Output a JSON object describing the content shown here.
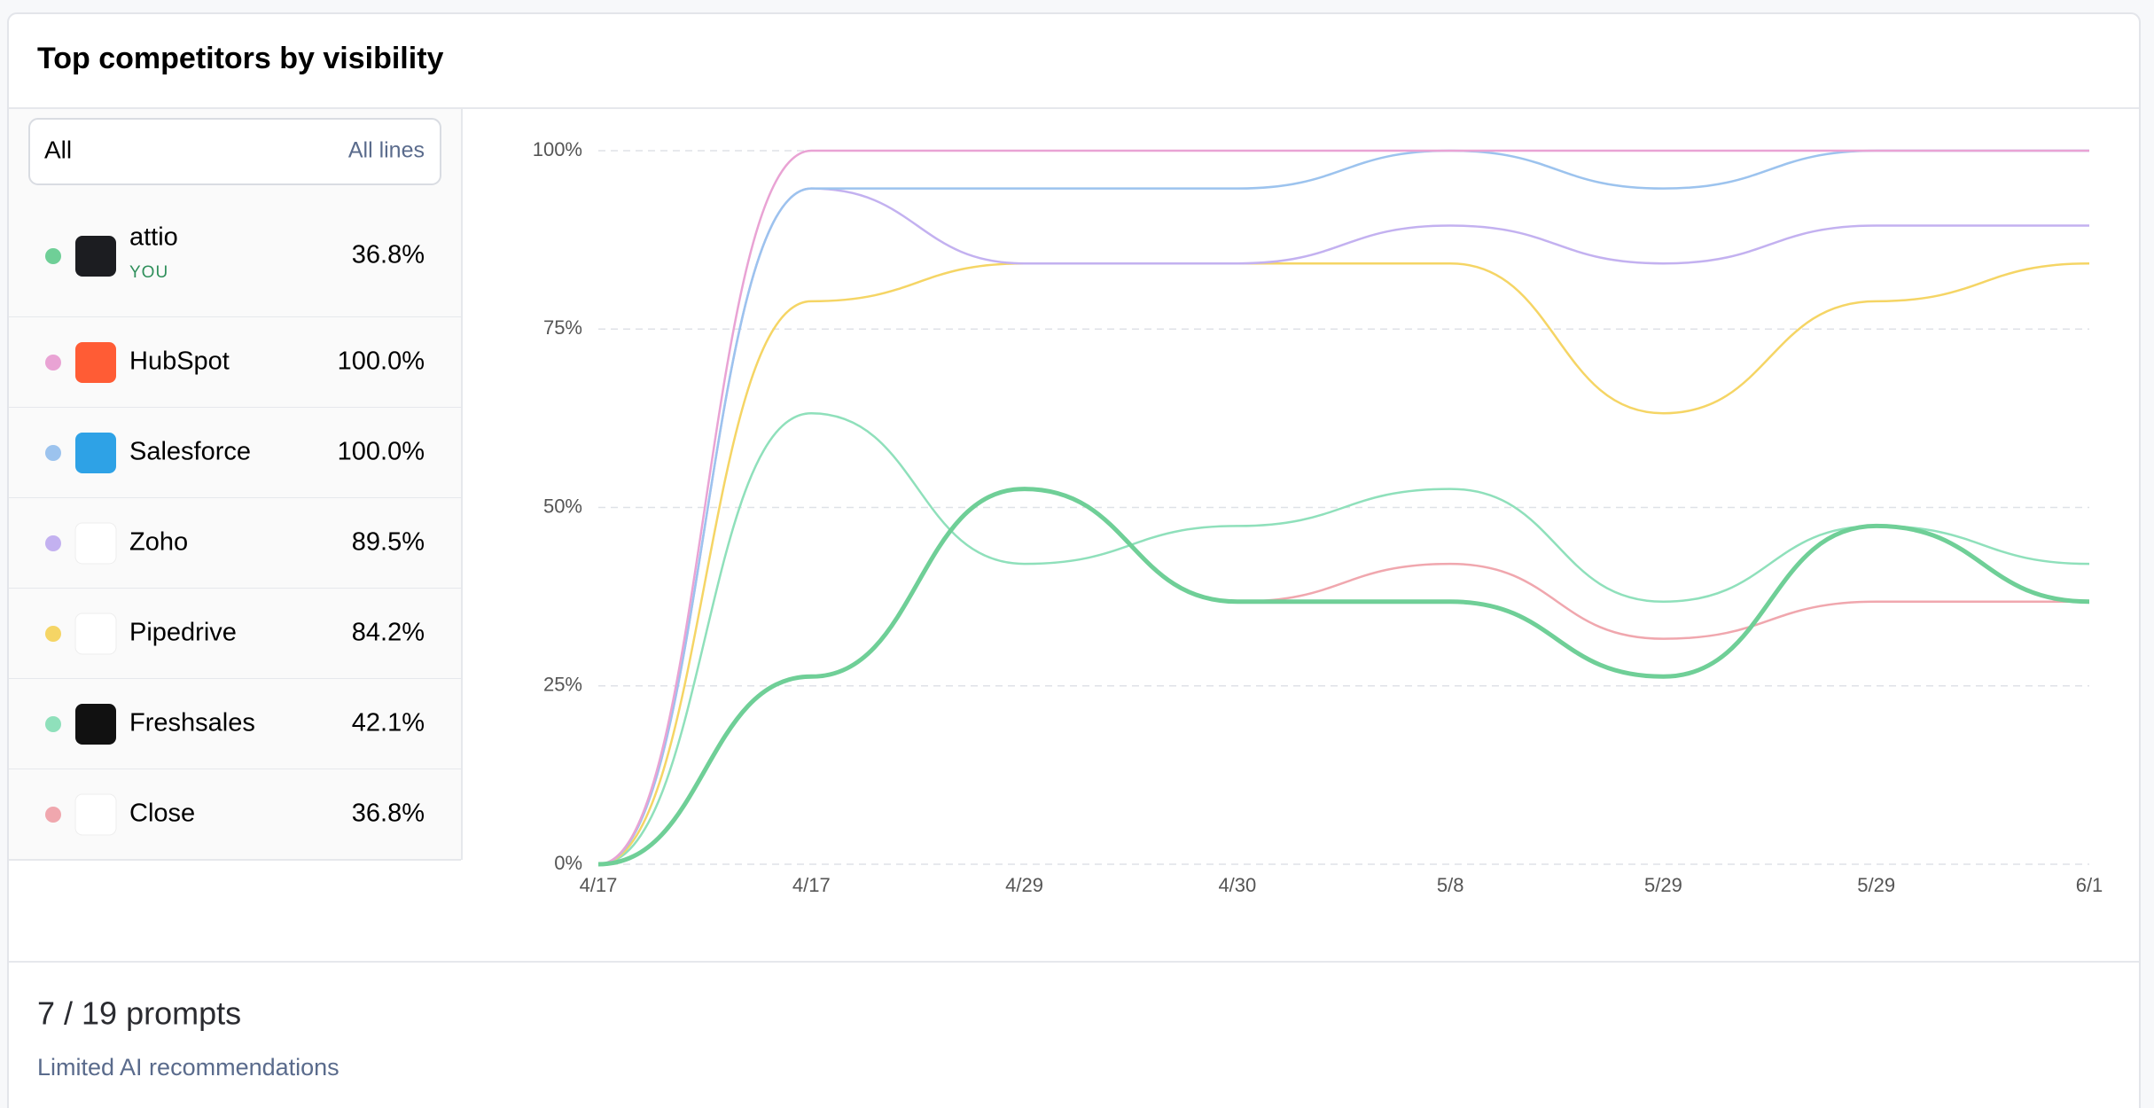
{
  "header": {
    "title": "Top competitors by visibility"
  },
  "filter": {
    "selected": "All",
    "action": "All lines"
  },
  "chart_data": {
    "type": "line",
    "x": [
      "4/17",
      "4/17",
      "4/29",
      "4/30",
      "5/8",
      "5/29",
      "5/29",
      "6/1"
    ],
    "ylim": [
      0,
      100
    ],
    "yticks": [
      {
        "value": 0,
        "label": "0%"
      },
      {
        "value": 25,
        "label": "25%"
      },
      {
        "value": 50,
        "label": "50%"
      },
      {
        "value": 75,
        "label": "75%"
      },
      {
        "value": 100,
        "label": "100%"
      }
    ],
    "grid": true,
    "series": [
      {
        "name": "attio",
        "badge": "YOU",
        "share": "36.8%",
        "color": "#6fcf97",
        "values": [
          0,
          26.3,
          52.6,
          36.8,
          36.8,
          26.3,
          47.4,
          36.8
        ]
      },
      {
        "name": "HubSpot",
        "share": "100.0%",
        "color": "#e9a3d4",
        "values": [
          0,
          100,
          100,
          100,
          100,
          100,
          100,
          100
        ]
      },
      {
        "name": "Salesforce",
        "share": "100.0%",
        "color": "#9cc3ee",
        "values": [
          0,
          94.7,
          94.7,
          94.7,
          100,
          94.7,
          100,
          100
        ]
      },
      {
        "name": "Zoho",
        "share": "89.5%",
        "color": "#c3b1f0",
        "values": [
          0,
          94.7,
          84.2,
          84.2,
          89.5,
          84.2,
          89.5,
          89.5
        ]
      },
      {
        "name": "Pipedrive",
        "share": "84.2%",
        "color": "#f5d565",
        "values": [
          0,
          78.9,
          84.2,
          84.2,
          84.2,
          63.2,
          78.9,
          84.2
        ]
      },
      {
        "name": "Freshsales",
        "share": "42.1%",
        "color": "#8fe0bb",
        "values": [
          0,
          63.2,
          42.1,
          47.4,
          52.6,
          36.8,
          47.4,
          42.1
        ]
      },
      {
        "name": "Close",
        "share": "36.8%",
        "color": "#f0a7ae",
        "values": [
          0,
          26.3,
          52.6,
          36.8,
          42.1,
          31.6,
          36.8,
          36.8
        ]
      }
    ]
  },
  "footer": {
    "count": "7 / 19 prompts",
    "note": "Limited AI recommendations"
  }
}
